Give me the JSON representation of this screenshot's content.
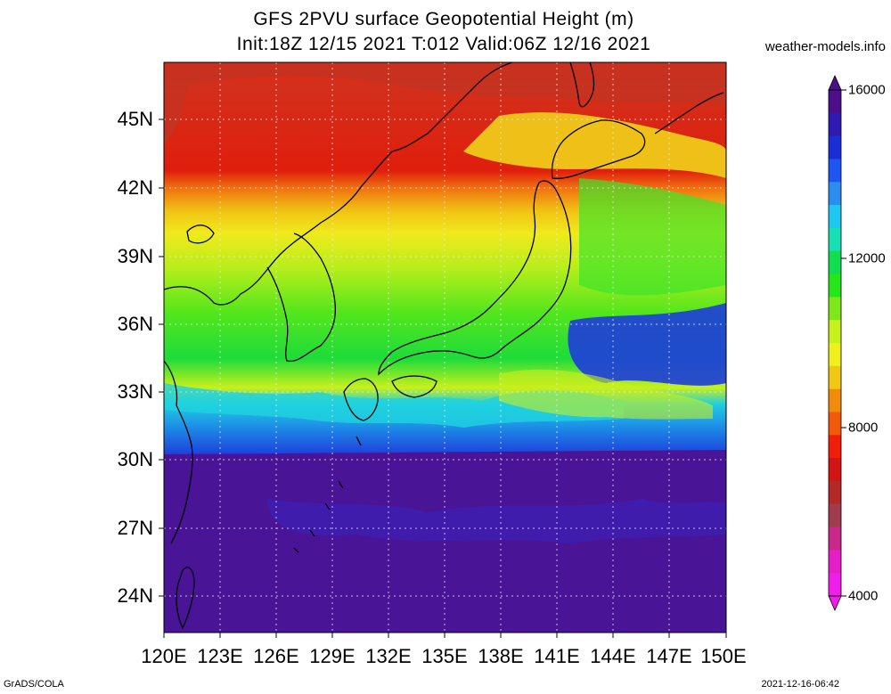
{
  "title": {
    "line1": "GFS 2PVU surface Geopotential Height (m)",
    "line2": "Init:18Z 12/15 2021 T:012 Valid:06Z 12/16 2021"
  },
  "site": "weather-models.info",
  "x_axis": {
    "ticks": [
      "120E",
      "123E",
      "126E",
      "129E",
      "132E",
      "135E",
      "138E",
      "141E",
      "144E",
      "147E",
      "150E"
    ]
  },
  "y_axis": {
    "ticks": [
      "45N",
      "42N",
      "39N",
      "36N",
      "33N",
      "30N",
      "27N",
      "24N"
    ]
  },
  "colorbar": {
    "labels": [
      "16000",
      "12000",
      "8000",
      "4000"
    ],
    "colors": [
      "#4b0f8c",
      "#2e1ab0",
      "#1a2ed6",
      "#1f55f0",
      "#2c8cf0",
      "#1fc7f0",
      "#19e0b4",
      "#12dc50",
      "#26e61a",
      "#7ee619",
      "#c8f01c",
      "#f0f01c",
      "#f0c814",
      "#f08c0a",
      "#f05a0a",
      "#f01e0a",
      "#d21414",
      "#b42828",
      "#a03c50",
      "#c8288c",
      "#e61ec8",
      "#f01eeb"
    ]
  },
  "map_fields": {
    "north_red": "#e8260c",
    "deep_red": "#c43222",
    "orange": "#f0a010",
    "yellow": "#f0ea1c",
    "lime": "#b8ee1c",
    "green": "#22dd2e",
    "cyan": "#1bd8d8",
    "blue": "#1e3cdc",
    "purple": "#4a1497"
  },
  "footer": {
    "left": "GrADS/COLA",
    "right": "2021-12-16-06:42"
  }
}
